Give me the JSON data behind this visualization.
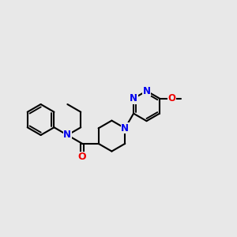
{
  "bg": "#e8e8e8",
  "bond_color": "#000000",
  "N_color": "#0000ee",
  "O_color": "#ee0000",
  "lw": 1.5,
  "figsize": [
    3.0,
    3.0
  ],
  "dpi": 100,
  "xlim": [
    0,
    10
  ],
  "ylim": [
    2,
    8
  ]
}
